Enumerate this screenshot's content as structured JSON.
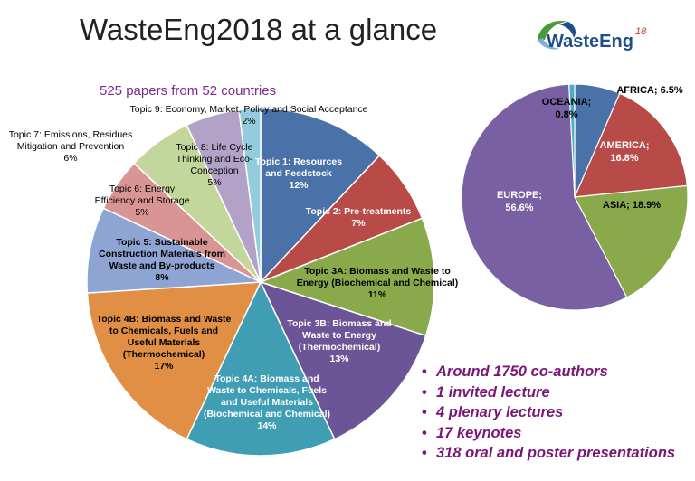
{
  "header": {
    "title": "WasteEng2018 at a glance",
    "subtitle": "525 papers from 52 countries"
  },
  "logo": {
    "text": "WasteEng",
    "superscript": "18",
    "colors": {
      "text": "#1f4e8c",
      "accent": "#4a9a3a",
      "superscript": "#c0392b"
    }
  },
  "bullets": [
    "Around 1750 co-authors",
    "1 invited lecture",
    "4 plenary lectures",
    "17 keynotes",
    "318 oral  and poster presentations"
  ],
  "colors": {
    "bullet_text": "#7b1677",
    "subtitle": "#7b2a8c"
  },
  "chart_data": [
    {
      "type": "pie",
      "slices": [
        {
          "label": "Topic 1: Resources and Feedstock",
          "value": 12,
          "display": "12%",
          "color": "#4a72a8"
        },
        {
          "label": "Topic 2: Pre-treatments",
          "value": 7,
          "display": "7%",
          "color": "#b84a47"
        },
        {
          "label": "Topic 3A: Biomass and Waste to Energy (Biochemical and Chemical)",
          "value": 11,
          "display": "11%",
          "color": "#89a94a"
        },
        {
          "label": "Topic 3B: Biomass and Waste to Energy (Thermochemical)",
          "value": 13,
          "display": "13%",
          "color": "#6c5596"
        },
        {
          "label": "Topic 4A: Biomass and Waste to Chemicals, Fuels and Useful Materials (Biochemical and Chemical)",
          "value": 14,
          "display": "14%",
          "color": "#3f9eb4"
        },
        {
          "label": "Topic 4B: Biomass and Waste to Chemicals, Fuels and Useful Materials (Thermochemical)",
          "value": 17,
          "display": "17%",
          "color": "#e08f45"
        },
        {
          "label": "Topic 5: Sustainable Construction Materials from Waste and By-products",
          "value": 8,
          "display": "8%",
          "color": "#8ea5d4"
        },
        {
          "label": "Topic 6: Energy Efficiency and Storage",
          "value": 5,
          "display": "5%",
          "color": "#d99593"
        },
        {
          "label": "Topic 7: Emissions, Residues Mitigation and Prevention",
          "value": 6,
          "display": "6%",
          "color": "#c3d69b"
        },
        {
          "label": "Topic 8: Life Cycle Thinking and Eco-Conception",
          "value": 5,
          "display": "5%",
          "color": "#b3a2c7"
        },
        {
          "label": "Topic 9: Economy, Market, Policy and Social Acceptance",
          "value": 2,
          "display": "2%",
          "color": "#93cddd"
        }
      ]
    },
    {
      "type": "pie",
      "slices": [
        {
          "label": "AFRICA",
          "value": 6.5,
          "display": "AFRICA; 6.5%",
          "color": "#4a72a8"
        },
        {
          "label": "AMERICA",
          "value": 16.8,
          "display": "AMERICA; 16.8%",
          "color": "#b84a47"
        },
        {
          "label": "ASIA",
          "value": 18.9,
          "display": "ASIA; 18.9%",
          "color": "#89a94a"
        },
        {
          "label": "EUROPE",
          "value": 56.6,
          "display": "EUROPE; 56.6%",
          "color": "#7860a2"
        },
        {
          "label": "OCEANIA",
          "value": 0.8,
          "display": "OCEANIA; 0.8%",
          "color": "#4aacc6"
        }
      ]
    }
  ]
}
